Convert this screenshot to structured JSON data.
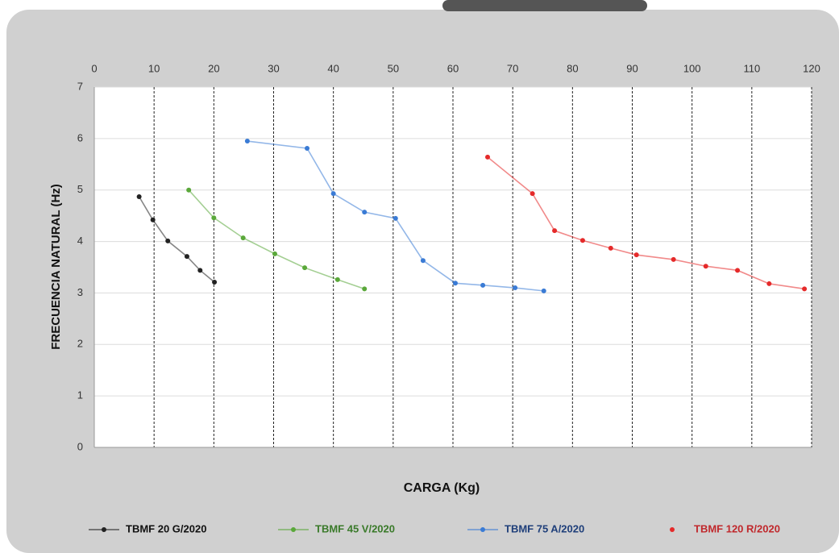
{
  "chart_data": {
    "type": "line",
    "x_label": "CARGA (Kg)",
    "y_label": "FRECUENCIA NATURAL (Hz)",
    "xlim": [
      0,
      120
    ],
    "ylim": [
      0,
      7
    ],
    "xticks": [
      0,
      10,
      20,
      30,
      40,
      50,
      60,
      70,
      80,
      90,
      100,
      110,
      120
    ],
    "yticks": [
      0,
      1,
      2,
      3,
      4,
      5,
      6,
      7
    ],
    "grid": true,
    "legend": "bottom",
    "series": [
      {
        "name": "TBMF 20 G/2020",
        "color": "#222222",
        "label_color": "#111111",
        "x": [
          7.5,
          9.8,
          12.3,
          15.5,
          17.7,
          20.1
        ],
        "values": [
          4.87,
          4.42,
          4.01,
          3.71,
          3.44,
          3.21
        ]
      },
      {
        "name": "TBMF 45 V/2020",
        "color": "#5aa83a",
        "label_color": "#3a7a2a",
        "x": [
          15.8,
          20,
          24.9,
          30.2,
          35.2,
          40.7,
          45.2
        ],
        "values": [
          5.0,
          4.46,
          4.07,
          3.76,
          3.49,
          3.26,
          3.08
        ]
      },
      {
        "name": "TBMF 75 A/2020",
        "color": "#3a7bd5",
        "label_color": "#1f3f7a",
        "x": [
          25.6,
          35.6,
          40,
          45.2,
          50.4,
          55,
          60.4,
          65,
          70.4,
          75.2
        ],
        "values": [
          5.95,
          5.81,
          4.93,
          4.57,
          4.45,
          3.63,
          3.19,
          3.15,
          3.1,
          3.04
        ]
      },
      {
        "name": "TBMF 120 R/2020",
        "color": "#e52a2a",
        "label_color": "#c0282c",
        "x": [
          65.8,
          73.3,
          77,
          81.7,
          86.4,
          90.7,
          96.9,
          102.3,
          107.6,
          112.9,
          118.8
        ],
        "values": [
          5.64,
          4.93,
          4.21,
          4.02,
          3.87,
          3.74,
          3.65,
          3.52,
          3.44,
          3.18,
          3.08
        ]
      }
    ]
  }
}
